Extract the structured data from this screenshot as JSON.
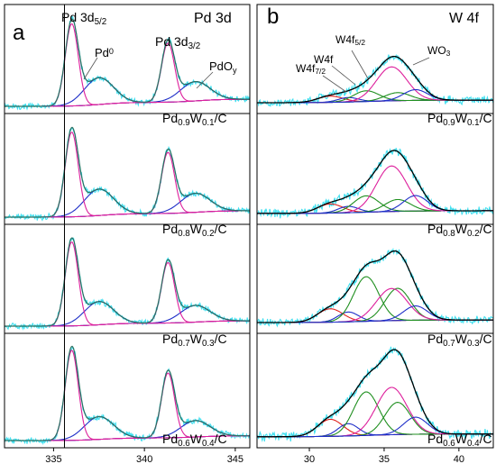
{
  "chart_data": [
    {
      "type": "line",
      "panel_label": "a",
      "title": "Pd 3d",
      "xlim": [
        332.3,
        345.8
      ],
      "xticks": [
        335,
        340,
        345
      ],
      "xtick_labels": [
        "335",
        "340",
        "345"
      ],
      "reference_line_x": 335.6,
      "annotations": [
        {
          "id": "pd3d52",
          "text": "Pd 3d",
          "sub": "5/2"
        },
        {
          "id": "pd0",
          "text": "Pd",
          "sup": "0"
        },
        {
          "id": "pd3d32",
          "text": "Pd 3d",
          "sub": "3/2"
        },
        {
          "id": "pdoy",
          "text": "PdO",
          "sub": "y"
        }
      ],
      "samples": [
        {
          "sample": [
            {
              "t": "Pd"
            },
            {
              "t": "0.9",
              "sub": true
            },
            {
              "t": "W"
            },
            {
              "t": "0.1",
              "sub": true
            },
            {
              "t": "/C"
            }
          ],
          "baseline": 0.08,
          "pd0_height": 0.92,
          "pdo_height": 0.3
        },
        {
          "sample": [
            {
              "t": "Pd"
            },
            {
              "t": "0.8",
              "sub": true
            },
            {
              "t": "W"
            },
            {
              "t": "0.2",
              "sub": true
            },
            {
              "t": "/C"
            }
          ],
          "baseline": 0.07,
          "pd0_height": 0.93,
          "pdo_height": 0.29
        },
        {
          "sample": [
            {
              "t": "Pd"
            },
            {
              "t": "0.7",
              "sub": true
            },
            {
              "t": "W"
            },
            {
              "t": "0.3",
              "sub": true
            },
            {
              "t": "/C"
            }
          ],
          "baseline": 0.06,
          "pd0_height": 0.94,
          "pdo_height": 0.26
        },
        {
          "sample": [
            {
              "t": "Pd"
            },
            {
              "t": "0.6",
              "sub": true
            },
            {
              "t": "W"
            },
            {
              "t": "0.4",
              "sub": true
            },
            {
              "t": "/C"
            }
          ],
          "baseline": 0.05,
          "pd0_height": 0.95,
          "pdo_height": 0.24
        }
      ],
      "components": [
        {
          "name": "Pd0 3d5/2",
          "center": 336.0,
          "fwhm": 0.85,
          "color": "#dd1f9c"
        },
        {
          "name": "Pd0 3d3/2",
          "center": 341.3,
          "fwhm": 0.85,
          "color": "#dd1f9c"
        },
        {
          "name": "PdOy 3d5/2",
          "center": 337.5,
          "fwhm": 1.9,
          "color": "#1f2fc8"
        },
        {
          "name": "PdOy 3d3/2",
          "center": 342.8,
          "fwhm": 1.9,
          "color": "#1f2fc8"
        }
      ],
      "pd3d32_ratio": 0.72,
      "colors": {
        "data": "#40e0f0",
        "envelope": "#2b6f60",
        "pd0": "#dd1f9c",
        "pdo": "#1f2fc8",
        "background": "#1f2fc8"
      }
    },
    {
      "type": "line",
      "panel_label": "b",
      "title": "W 4f",
      "xlim": [
        26.5,
        42.3
      ],
      "xticks": [
        30,
        35,
        40
      ],
      "xtick_labels": [
        "30",
        "35",
        "40"
      ],
      "annotations": [
        {
          "id": "w4f72",
          "text": "W4f",
          "sub": "7/2"
        },
        {
          "id": "w4f",
          "text": "W4f"
        },
        {
          "id": "w4f52",
          "text": "W4f",
          "sub": "5/2"
        },
        {
          "id": "wo3",
          "text": "WO",
          "sub": "3"
        }
      ],
      "samples": [
        {
          "sample": [
            {
              "t": "Pd"
            },
            {
              "t": "0.9",
              "sub": true
            },
            {
              "t": "W"
            },
            {
              "t": "0.1",
              "sub": true
            },
            {
              "t": "/C"
            }
          ],
          "w0_7": 0.07,
          "w0_5": 0.05,
          "wmid_7": 0.12,
          "wmid_5": 0.09,
          "wo3_7": 0.38,
          "wo3_5": 0.12
        },
        {
          "sample": [
            {
              "t": "Pd"
            },
            {
              "t": "0.8",
              "sub": true
            },
            {
              "t": "W"
            },
            {
              "t": "0.2",
              "sub": true
            },
            {
              "t": "/C"
            }
          ],
          "w0_7": 0.1,
          "w0_5": 0.07,
          "wmid_7": 0.18,
          "wmid_5": 0.13,
          "wo3_7": 0.5,
          "wo3_5": 0.17
        },
        {
          "sample": [
            {
              "t": "Pd"
            },
            {
              "t": "0.7",
              "sub": true
            },
            {
              "t": "W"
            },
            {
              "t": "0.3",
              "sub": true
            },
            {
              "t": "/C"
            }
          ],
          "w0_7": 0.15,
          "w0_5": 0.11,
          "wmid_7": 0.5,
          "wmid_5": 0.36,
          "wo3_7": 0.36,
          "wo3_5": 0.16
        },
        {
          "sample": [
            {
              "t": "Pd"
            },
            {
              "t": "0.6",
              "sub": true
            },
            {
              "t": "W"
            },
            {
              "t": "0.4",
              "sub": true
            },
            {
              "t": "/C"
            }
          ],
          "w0_7": 0.18,
          "w0_5": 0.13,
          "wmid_7": 0.46,
          "wmid_5": 0.34,
          "wo3_7": 0.5,
          "wo3_5": 0.18
        }
      ],
      "components": [
        {
          "name": "W0 4f7/2",
          "center": 31.4,
          "fwhm": 2.0,
          "color": "#e0201c"
        },
        {
          "name": "W0 4f5/2",
          "center": 32.6,
          "fwhm": 1.6,
          "color": "#1f2fc8"
        },
        {
          "name": "W 4f7/2",
          "center": 33.8,
          "fwhm": 2.0,
          "color": "#1f8f1f"
        },
        {
          "name": "W 4f5/2",
          "center": 35.9,
          "fwhm": 2.0,
          "color": "#1f8f1f"
        },
        {
          "name": "WO3 4f7/2",
          "center": 35.5,
          "fwhm": 2.4,
          "color": "#dd1f9c"
        },
        {
          "name": "WO3 4f5/2",
          "center": 37.1,
          "fwhm": 1.9,
          "color": "#1f2fc8"
        }
      ],
      "colors": {
        "data": "#40e0f0",
        "envelope": "#000000",
        "w0": "#e0201c",
        "wmid": "#1f8f1f",
        "wo3": "#dd1f9c",
        "doublet": "#1f2fc8",
        "background": "#1f2fc8"
      }
    }
  ]
}
